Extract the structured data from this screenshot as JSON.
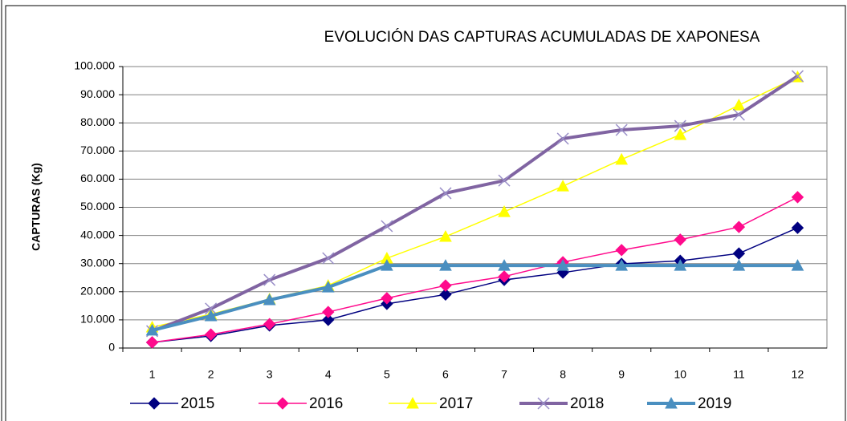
{
  "chart_data": {
    "type": "line",
    "title": "EVOLUCIÓN DAS CAPTURAS ACUMULADAS DE XAPONESA",
    "y_label": "CAPTURAS (Kg)",
    "categories": [
      "1",
      "2",
      "3",
      "4",
      "5",
      "6",
      "7",
      "8",
      "9",
      "10",
      "11",
      "12"
    ],
    "ylim": [
      0,
      100000
    ],
    "yticks": [
      {
        "value": 0,
        "label": "0"
      },
      {
        "value": 10000,
        "label": "10.000"
      },
      {
        "value": 20000,
        "label": "20.000"
      },
      {
        "value": 30000,
        "label": "30.000"
      },
      {
        "value": 40000,
        "label": "40.000"
      },
      {
        "value": 50000,
        "label": "50.000"
      },
      {
        "value": 60000,
        "label": "60.000"
      },
      {
        "value": 70000,
        "label": "70.000"
      },
      {
        "value": 80000,
        "label": "80.000"
      },
      {
        "value": 90000,
        "label": "90.000"
      },
      {
        "value": 100000,
        "label": "100.000"
      }
    ],
    "grid": true,
    "legend": "bottom",
    "series": [
      {
        "name": "2015",
        "color": "#000080",
        "marker": "diamond",
        "width": 1.5,
        "values": [
          2000,
          4300,
          8000,
          10000,
          15700,
          19000,
          24200,
          26800,
          29900,
          31000,
          33600,
          42700
        ]
      },
      {
        "name": "2016",
        "color": "#ff0a8c",
        "marker": "diamond",
        "width": 1.5,
        "values": [
          2000,
          4800,
          8500,
          12800,
          17700,
          22200,
          25400,
          30500,
          34800,
          38500,
          43000,
          53600
        ]
      },
      {
        "name": "2017",
        "color": "#ffff00",
        "marker": "triangle",
        "width": 1.5,
        "values": [
          7400,
          12000,
          17400,
          22200,
          31900,
          39600,
          48400,
          57500,
          67000,
          75800,
          86300,
          96300
        ]
      },
      {
        "name": "2018",
        "color": "#8064a2",
        "marker": "cross",
        "width": 4,
        "values": [
          6000,
          14000,
          24200,
          31900,
          43300,
          55000,
          59500,
          74400,
          77500,
          78900,
          82900,
          96600
        ]
      },
      {
        "name": "2019",
        "color": "#4a8fc0",
        "marker": "triangle",
        "width": 4,
        "values": [
          6300,
          11400,
          17100,
          21600,
          29300,
          29300,
          29300,
          29300,
          29300,
          29300,
          29300,
          29300
        ]
      }
    ]
  }
}
